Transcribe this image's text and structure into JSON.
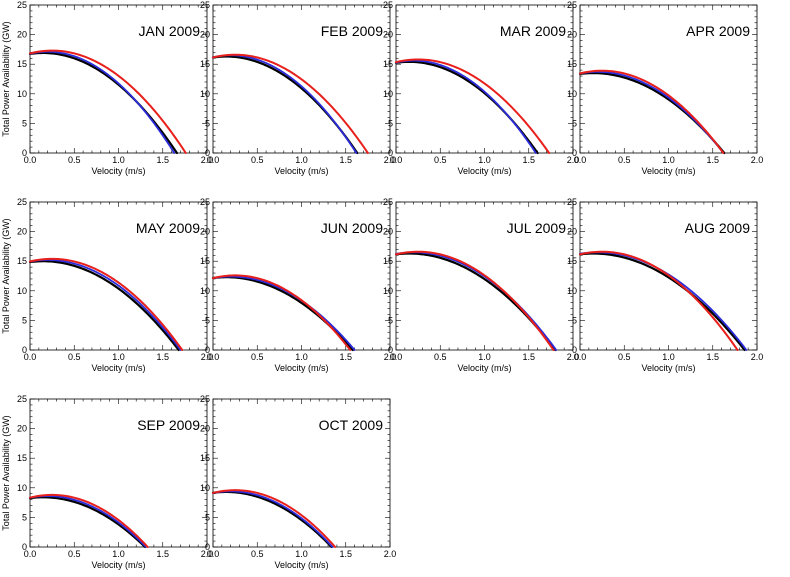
{
  "chart_data": [
    {
      "type": "line",
      "title": "JAN 2009",
      "xlabel": "Velocity (m/s)",
      "ylabel": "Total Power Availability (GW)",
      "xlim": [
        0,
        2
      ],
      "ylim": [
        0,
        25
      ],
      "xticks": [
        "0.0",
        "0.5",
        "1.0",
        "1.5",
        "2.0"
      ],
      "yticks": [
        "0",
        "5",
        "10",
        "15",
        "20",
        "25"
      ],
      "curves": {
        "black": {
          "max": 16.9,
          "peak_x": 0.15,
          "end": 1.66
        },
        "blue": {
          "max": 17.1,
          "peak_x": 0.2,
          "end": 1.63
        },
        "red": {
          "max": 17.3,
          "peak_x": 0.25,
          "end": 1.76
        }
      }
    },
    {
      "type": "line",
      "title": "FEB 2009",
      "xlabel": "Velocity (m/s)",
      "ylabel": "",
      "xlim": [
        0,
        2
      ],
      "ylim": [
        0,
        25
      ],
      "xticks": [
        "0.0",
        "0.5",
        "1.0",
        "1.5",
        "2.0"
      ],
      "yticks": [
        "0",
        "5",
        "10",
        "15",
        "20",
        "25"
      ],
      "curves": {
        "black": {
          "max": 16.3,
          "peak_x": 0.15,
          "end": 1.63
        },
        "blue": {
          "max": 16.5,
          "peak_x": 0.2,
          "end": 1.62
        },
        "red": {
          "max": 16.6,
          "peak_x": 0.25,
          "end": 1.75
        }
      }
    },
    {
      "type": "line",
      "title": "MAR 2009",
      "xlabel": "Velocity (m/s)",
      "ylabel": "",
      "xlim": [
        0,
        2
      ],
      "ylim": [
        0,
        25
      ],
      "xticks": [
        "0.0",
        "0.5",
        "1.0",
        "1.5",
        "2.0"
      ],
      "yticks": [
        "0",
        "5",
        "10",
        "15",
        "20",
        "25"
      ],
      "curves": {
        "black": {
          "max": 15.4,
          "peak_x": 0.15,
          "end": 1.6
        },
        "blue": {
          "max": 15.6,
          "peak_x": 0.2,
          "end": 1.58
        },
        "red": {
          "max": 15.8,
          "peak_x": 0.25,
          "end": 1.73
        }
      }
    },
    {
      "type": "line",
      "title": "APR 2009",
      "xlabel": "Velocity (m/s)",
      "ylabel": "",
      "xlim": [
        0,
        2
      ],
      "ylim": [
        0,
        25
      ],
      "xticks": [
        "0.0",
        "0.5",
        "1.0",
        "1.5",
        "2.0"
      ],
      "yticks": [
        "0",
        "5",
        "10",
        "15",
        "20",
        "25"
      ],
      "curves": {
        "black": {
          "max": 13.5,
          "peak_x": 0.15,
          "end": 1.63
        },
        "blue": {
          "max": 13.7,
          "peak_x": 0.2,
          "end": 1.62
        },
        "red": {
          "max": 13.9,
          "peak_x": 0.25,
          "end": 1.62
        }
      }
    },
    {
      "type": "line",
      "title": "MAY 2009",
      "xlabel": "Velocity (m/s)",
      "ylabel": "Total Power Availability (GW)",
      "xlim": [
        0,
        2
      ],
      "ylim": [
        0,
        25
      ],
      "xticks": [
        "0.0",
        "0.5",
        "1.0",
        "1.5",
        "2.0"
      ],
      "yticks": [
        "0",
        "5",
        "10",
        "15",
        "20",
        "25"
      ],
      "curves": {
        "black": {
          "max": 15.0,
          "peak_x": 0.15,
          "end": 1.68
        },
        "blue": {
          "max": 15.2,
          "peak_x": 0.2,
          "end": 1.7
        },
        "red": {
          "max": 15.4,
          "peak_x": 0.25,
          "end": 1.72
        }
      }
    },
    {
      "type": "line",
      "title": "JUN 2009",
      "xlabel": "Velocity (m/s)",
      "ylabel": "",
      "xlim": [
        0,
        2
      ],
      "ylim": [
        0,
        25
      ],
      "xticks": [
        "0.0",
        "0.5",
        "1.0",
        "1.5",
        "2.0"
      ],
      "yticks": [
        "0",
        "5",
        "10",
        "15",
        "20",
        "25"
      ],
      "curves": {
        "black": {
          "max": 12.3,
          "peak_x": 0.15,
          "end": 1.58
        },
        "blue": {
          "max": 12.4,
          "peak_x": 0.2,
          "end": 1.6
        },
        "red": {
          "max": 12.6,
          "peak_x": 0.25,
          "end": 1.55
        }
      }
    },
    {
      "type": "line",
      "title": "JUL 2009",
      "xlabel": "Velocity (m/s)",
      "ylabel": "",
      "xlim": [
        0,
        2
      ],
      "ylim": [
        0,
        25
      ],
      "xticks": [
        "0.0",
        "0.5",
        "1.0",
        "1.5",
        "2.0"
      ],
      "yticks": [
        "0",
        "5",
        "10",
        "15",
        "20",
        "25"
      ],
      "curves": {
        "black": {
          "max": 16.3,
          "peak_x": 0.15,
          "end": 1.8
        },
        "blue": {
          "max": 16.5,
          "peak_x": 0.2,
          "end": 1.81
        },
        "red": {
          "max": 16.6,
          "peak_x": 0.25,
          "end": 1.78
        }
      }
    },
    {
      "type": "line",
      "title": "AUG 2009",
      "xlabel": "Velocity (m/s)",
      "ylabel": "",
      "xlim": [
        0,
        2
      ],
      "ylim": [
        0,
        25
      ],
      "xticks": [
        "0.0",
        "0.5",
        "1.0",
        "1.5",
        "2.0"
      ],
      "yticks": [
        "0",
        "5",
        "10",
        "15",
        "20",
        "25"
      ],
      "curves": {
        "black": {
          "max": 16.3,
          "peak_x": 0.15,
          "end": 1.86
        },
        "blue": {
          "max": 16.5,
          "peak_x": 0.2,
          "end": 1.88
        },
        "red": {
          "max": 16.6,
          "peak_x": 0.25,
          "end": 1.78
        }
      }
    },
    {
      "type": "line",
      "title": "SEP 2009",
      "xlabel": "Velocity (m/s)",
      "ylabel": "Total Power Availability (GW)",
      "xlim": [
        0,
        2
      ],
      "ylim": [
        0,
        25
      ],
      "xticks": [
        "0.0",
        "0.5",
        "1.0",
        "1.5",
        "2.0"
      ],
      "yticks": [
        "0",
        "5",
        "10",
        "15",
        "20",
        "25"
      ],
      "curves": {
        "black": {
          "max": 8.4,
          "peak_x": 0.15,
          "end": 1.3
        },
        "blue": {
          "max": 8.6,
          "peak_x": 0.2,
          "end": 1.31
        },
        "red": {
          "max": 8.8,
          "peak_x": 0.25,
          "end": 1.33
        }
      }
    },
    {
      "type": "line",
      "title": "OCT 2009",
      "xlabel": "Velocity (m/s)",
      "ylabel": "",
      "xlim": [
        0,
        2
      ],
      "ylim": [
        0,
        25
      ],
      "xticks": [
        "0.0",
        "0.5",
        "1.0",
        "1.5",
        "2.0"
      ],
      "yticks": [
        "0",
        "5",
        "10",
        "15",
        "20",
        "25"
      ],
      "curves": {
        "black": {
          "max": 9.3,
          "peak_x": 0.15,
          "end": 1.34
        },
        "blue": {
          "max": 9.4,
          "peak_x": 0.2,
          "end": 1.35
        },
        "red": {
          "max": 9.6,
          "peak_x": 0.25,
          "end": 1.38
        }
      }
    }
  ],
  "colors": {
    "black": "#000000",
    "blue": "#2b2bdc",
    "red": "#e8201c",
    "axis": "#000000"
  }
}
